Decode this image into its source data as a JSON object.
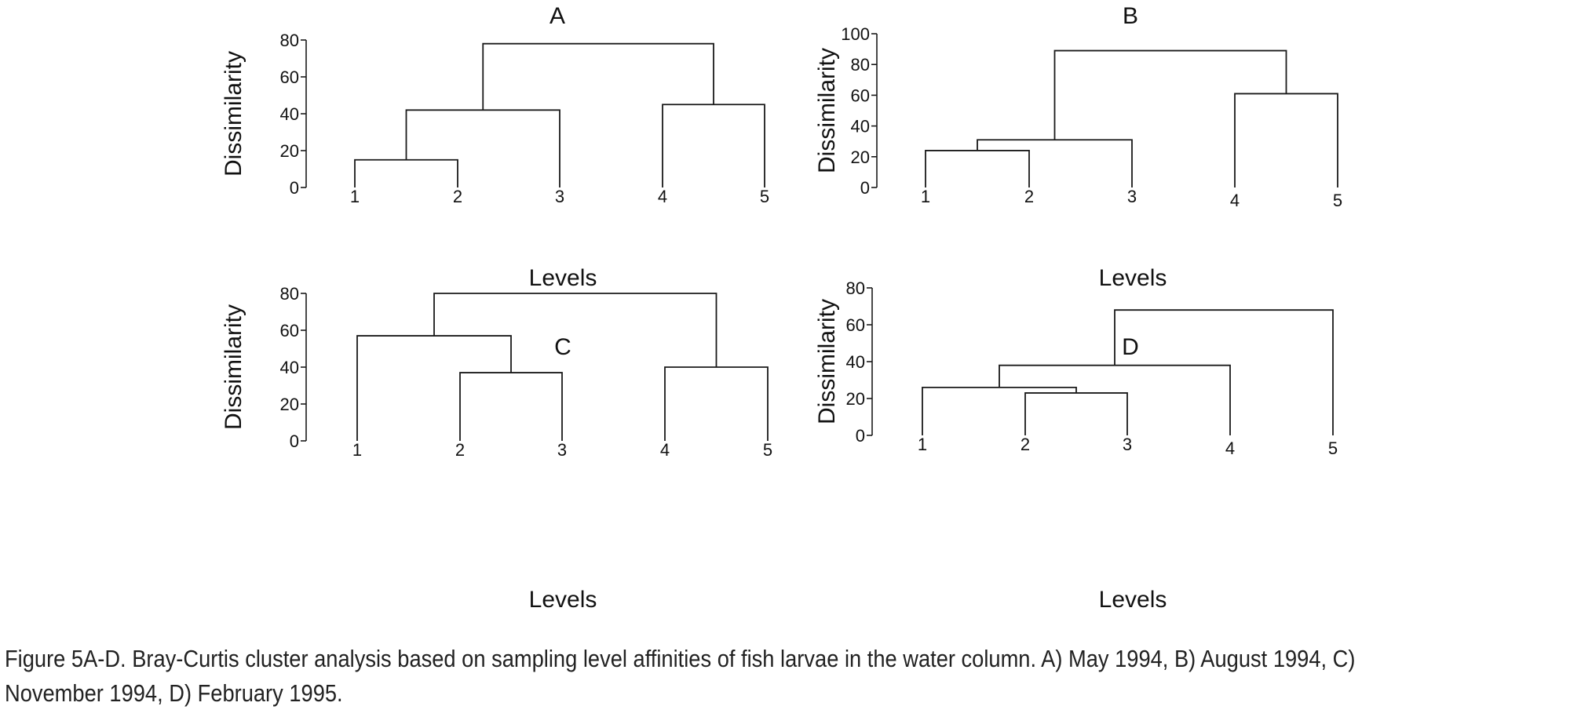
{
  "chart_data": [
    {
      "type": "dendrogram",
      "title": "A",
      "xlabel": "Levels",
      "ylabel": "Dissimilarity",
      "ylim": [
        0,
        80
      ],
      "yticks": [
        "0",
        "20",
        "40",
        "60",
        "80"
      ],
      "leaves": [
        "1",
        "2",
        "3",
        "4",
        "5"
      ],
      "merges": [
        {
          "a": "1",
          "b": "2",
          "height": 15
        },
        {
          "a": "4",
          "b": "5",
          "height": 45
        },
        {
          "a": "1,2",
          "b": "3",
          "height": 42
        },
        {
          "a": "1,2,3",
          "b": "4,5",
          "height": 78
        }
      ]
    },
    {
      "type": "dendrogram",
      "title": "B",
      "xlabel": "Levels",
      "ylabel": "Dissimilarity",
      "ylim": [
        0,
        100
      ],
      "yticks": [
        "0",
        "20",
        "40",
        "60",
        "80",
        "100"
      ],
      "leaves": [
        "1",
        "2",
        "3",
        "4",
        "5"
      ],
      "merges": [
        {
          "a": "1",
          "b": "2",
          "height": 24
        },
        {
          "a": "1,2",
          "b": "3",
          "height": 31
        },
        {
          "a": "4",
          "b": "5",
          "height": 61
        },
        {
          "a": "1,2,3",
          "b": "4,5",
          "height": 89
        }
      ]
    },
    {
      "type": "dendrogram",
      "title": "C",
      "xlabel": "Levels",
      "ylabel": "Dissimilarity",
      "ylim": [
        0,
        80
      ],
      "yticks": [
        "0",
        "20",
        "40",
        "60",
        "80"
      ],
      "leaves": [
        "1",
        "2",
        "3",
        "4",
        "5"
      ],
      "merges": [
        {
          "a": "2",
          "b": "3",
          "height": 37
        },
        {
          "a": "4",
          "b": "5",
          "height": 40
        },
        {
          "a": "1",
          "b": "2,3",
          "height": 57
        },
        {
          "a": "1,2,3",
          "b": "4,5",
          "height": 80
        }
      ]
    },
    {
      "type": "dendrogram",
      "title": "D",
      "xlabel": "Levels",
      "ylabel": "Dissimilarity",
      "ylim": [
        0,
        80
      ],
      "yticks": [
        "0",
        "20",
        "40",
        "60",
        "80"
      ],
      "leaves": [
        "1",
        "2",
        "3",
        "4",
        "5"
      ],
      "merges": [
        {
          "a": "2",
          "b": "3",
          "height": 23
        },
        {
          "a": "1",
          "b": "2,3",
          "height": 26
        },
        {
          "a": "1,2,3",
          "b": "4",
          "height": 38
        },
        {
          "a": "1,2,3,4",
          "b": "5",
          "height": 68
        }
      ]
    }
  ],
  "caption": {
    "text": "Figure 5A-D. Bray-Curtis cluster analysis based on sampling level affinities of fish larvae in the water column. A) May 1994, B) August 1994, C) November 1994, D) February 1995."
  }
}
